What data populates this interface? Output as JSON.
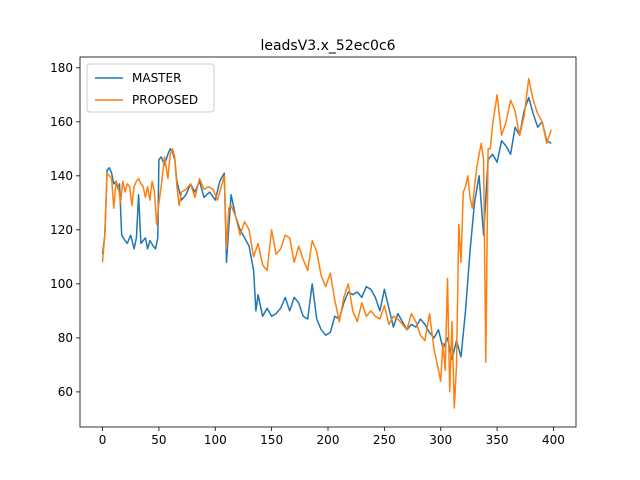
{
  "chart_data": {
    "type": "line",
    "title": "leadsV3.x_52ec0c6",
    "xlabel": "",
    "ylabel": "",
    "xlim": [
      -20,
      420
    ],
    "ylim": [
      47,
      184
    ],
    "xticks": [
      0,
      50,
      100,
      150,
      200,
      250,
      300,
      350,
      400
    ],
    "yticks": [
      60,
      80,
      100,
      120,
      140,
      160,
      180
    ],
    "grid": false,
    "legend": "upper left",
    "series": [
      {
        "name": "MASTER",
        "color": "#1f77b4",
        "x": [
          0,
          2,
          4,
          6,
          8,
          10,
          12,
          14,
          15,
          17,
          20,
          22,
          25,
          28,
          30,
          32,
          34,
          36,
          38,
          40,
          42,
          45,
          47,
          49,
          50,
          52,
          55,
          58,
          60,
          62,
          64,
          66,
          70,
          74,
          78,
          82,
          86,
          90,
          95,
          100,
          104,
          108,
          110,
          112,
          114,
          118,
          122,
          126,
          130,
          134,
          136,
          138,
          142,
          146,
          150,
          154,
          158,
          162,
          166,
          170,
          174,
          178,
          182,
          186,
          190,
          194,
          198,
          202,
          206,
          210,
          214,
          218,
          222,
          226,
          230,
          234,
          238,
          242,
          246,
          250,
          254,
          258,
          262,
          266,
          270,
          274,
          278,
          282,
          286,
          290,
          294,
          298,
          302,
          306,
          310,
          314,
          318,
          322,
          326,
          330,
          334,
          338,
          342,
          346,
          350,
          354,
          358,
          362,
          366,
          370,
          374,
          378,
          382,
          386,
          390,
          394,
          398
        ],
        "values": [
          111,
          118,
          142,
          143,
          141,
          137,
          138,
          135,
          137,
          118,
          116,
          115,
          118,
          113,
          117,
          133,
          115,
          116,
          117,
          113,
          116,
          114,
          113,
          117,
          146,
          147,
          144,
          148,
          150,
          149,
          146,
          138,
          131,
          133,
          137,
          134,
          138,
          132,
          134,
          131,
          138,
          141,
          108,
          121,
          133,
          125,
          120,
          117,
          114,
          105,
          90,
          96,
          88,
          91,
          88,
          89,
          91,
          95,
          90,
          95,
          93,
          88,
          87,
          100,
          87,
          83,
          81,
          82,
          88,
          87,
          93,
          97,
          96,
          97,
          95,
          99,
          98,
          95,
          90,
          98,
          91,
          84,
          89,
          86,
          83,
          85,
          84,
          87,
          85,
          82,
          80,
          83,
          76,
          80,
          72,
          79,
          73,
          90,
          112,
          130,
          140,
          118,
          146,
          148,
          145,
          153,
          151,
          148,
          158,
          155,
          164,
          169,
          163,
          158,
          160,
          153,
          152
        ]
      },
      {
        "name": "PROPOSED",
        "color": "#ff7f0e",
        "x": [
          0,
          2,
          4,
          6,
          8,
          10,
          12,
          14,
          16,
          18,
          20,
          22,
          24,
          26,
          28,
          30,
          32,
          34,
          36,
          38,
          40,
          42,
          44,
          46,
          48,
          50,
          52,
          55,
          58,
          60,
          62,
          64,
          66,
          68,
          70,
          74,
          78,
          82,
          86,
          90,
          94,
          98,
          102,
          106,
          108,
          110,
          112,
          114,
          118,
          122,
          126,
          130,
          134,
          138,
          142,
          146,
          150,
          154,
          158,
          162,
          166,
          170,
          174,
          178,
          182,
          186,
          190,
          194,
          198,
          202,
          206,
          210,
          214,
          218,
          222,
          226,
          230,
          234,
          238,
          242,
          246,
          250,
          254,
          258,
          262,
          266,
          270,
          274,
          278,
          282,
          286,
          290,
          294,
          298,
          300,
          302,
          304,
          306,
          308,
          310,
          312,
          314,
          316,
          318,
          320,
          322,
          324,
          326,
          328,
          330,
          332,
          334,
          336,
          338,
          340,
          342,
          344,
          346,
          350,
          354,
          358,
          362,
          366,
          370,
          374,
          378,
          382,
          386,
          390,
          394,
          398
        ],
        "values": [
          108,
          118,
          141,
          140,
          139,
          128,
          138,
          136,
          130,
          138,
          134,
          137,
          136,
          129,
          136,
          138,
          139,
          137,
          136,
          132,
          136,
          131,
          138,
          134,
          122,
          130,
          136,
          147,
          139,
          148,
          150,
          147,
          136,
          129,
          134,
          135,
          137,
          132,
          139,
          135,
          136,
          135,
          131,
          137,
          140,
          113,
          128,
          129,
          125,
          118,
          123,
          120,
          110,
          115,
          107,
          105,
          120,
          111,
          113,
          118,
          117,
          108,
          114,
          109,
          105,
          116,
          112,
          103,
          99,
          104,
          94,
          86,
          95,
          100,
          90,
          86,
          93,
          88,
          90,
          88,
          87,
          92,
          85,
          88,
          87,
          85,
          83,
          89,
          86,
          81,
          79,
          89,
          76,
          68,
          64,
          78,
          68,
          102,
          60,
          86,
          54,
          70,
          122,
          108,
          134,
          136,
          140,
          132,
          128,
          136,
          143,
          148,
          152,
          146,
          71,
          150,
          150,
          159,
          170,
          155,
          160,
          168,
          164,
          155,
          162,
          176,
          168,
          163,
          160,
          152,
          157
        ]
      }
    ]
  }
}
